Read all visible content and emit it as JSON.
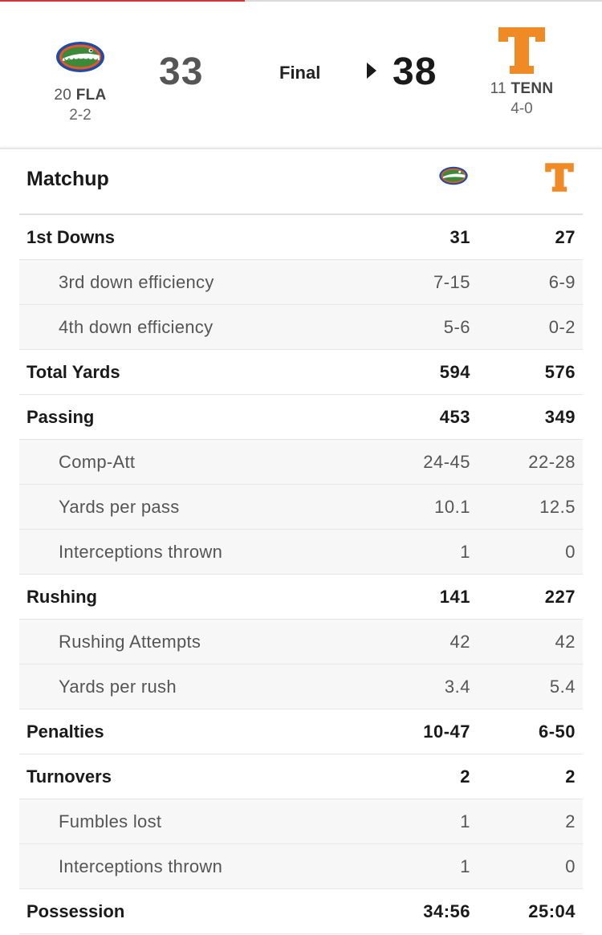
{
  "header": {
    "away": {
      "rank": "20",
      "abbr": "FLA",
      "record": "2-2",
      "score": "33",
      "logo": "gator-logo"
    },
    "home": {
      "rank": "11",
      "abbr": "TENN",
      "record": "4-0",
      "score": "38",
      "logo": "power-t-logo"
    },
    "status": "Final",
    "winner_indicator": "triangle-right-icon"
  },
  "matchup": {
    "title": "Matchup",
    "rows": [
      {
        "label": "1st Downs",
        "away": "31",
        "home": "27",
        "type": "main"
      },
      {
        "label": "3rd down efficiency",
        "away": "7-15",
        "home": "6-9",
        "type": "sub"
      },
      {
        "label": "4th down efficiency",
        "away": "5-6",
        "home": "0-2",
        "type": "sub"
      },
      {
        "label": "Total Yards",
        "away": "594",
        "home": "576",
        "type": "main"
      },
      {
        "label": "Passing",
        "away": "453",
        "home": "349",
        "type": "main"
      },
      {
        "label": "Comp-Att",
        "away": "24-45",
        "home": "22-28",
        "type": "sub"
      },
      {
        "label": "Yards per pass",
        "away": "10.1",
        "home": "12.5",
        "type": "sub"
      },
      {
        "label": "Interceptions thrown",
        "away": "1",
        "home": "0",
        "type": "sub"
      },
      {
        "label": "Rushing",
        "away": "141",
        "home": "227",
        "type": "main"
      },
      {
        "label": "Rushing Attempts",
        "away": "42",
        "home": "42",
        "type": "sub"
      },
      {
        "label": "Yards per rush",
        "away": "3.4",
        "home": "5.4",
        "type": "sub"
      },
      {
        "label": "Penalties",
        "away": "10-47",
        "home": "6-50",
        "type": "main"
      },
      {
        "label": "Turnovers",
        "away": "2",
        "home": "2",
        "type": "main"
      },
      {
        "label": "Fumbles lost",
        "away": "1",
        "home": "2",
        "type": "sub"
      },
      {
        "label": "Interceptions thrown",
        "away": "1",
        "home": "0",
        "type": "sub"
      },
      {
        "label": "Possession",
        "away": "34:56",
        "home": "25:04",
        "type": "main"
      }
    ]
  },
  "colors": {
    "accent": "#d4333a",
    "tenn_orange": "#f08a24",
    "gator_blue": "#1f4da1",
    "gator_green": "#3a8a3a"
  }
}
